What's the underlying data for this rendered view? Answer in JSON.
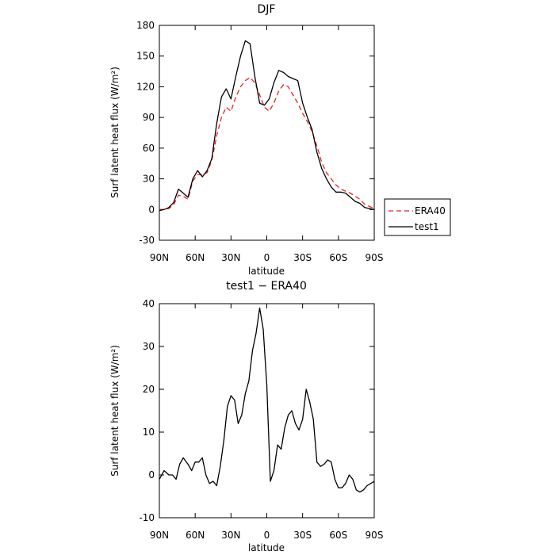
{
  "chart_data": [
    {
      "type": "line",
      "title": "DJF",
      "xlabel": "latitude",
      "ylabel": "Surf latent heat flux (W/m²)",
      "xlim": [
        90,
        -90
      ],
      "ylim": [
        -30,
        180
      ],
      "xticks": [
        90,
        60,
        30,
        0,
        -30,
        -60,
        -90
      ],
      "xtick_labels": [
        "90N",
        "60N",
        "30N",
        "0",
        "30S",
        "60S",
        "90S"
      ],
      "yticks": [
        -30,
        0,
        30,
        60,
        90,
        120,
        150,
        180
      ],
      "ytick_labels": [
        "-30",
        "0",
        "30",
        "60",
        "90",
        "120",
        "150",
        "180"
      ],
      "legend_position": "right",
      "series": [
        {
          "name": "ERA40",
          "color": "#e8201e",
          "dash": "dashed",
          "x": [
            90,
            86,
            82,
            78,
            74,
            70,
            66,
            62,
            58,
            54,
            50,
            46,
            42,
            38,
            34,
            30,
            26,
            22,
            18,
            14,
            10,
            6,
            2,
            -2,
            -6,
            -10,
            -14,
            -18,
            -22,
            -26,
            -30,
            -34,
            -38,
            -42,
            -46,
            -50,
            -54,
            -58,
            -62,
            -66,
            -70,
            -74,
            -78,
            -82,
            -86,
            -90
          ],
          "y": [
            0,
            0,
            1,
            5,
            14,
            13,
            10,
            28,
            34,
            34,
            36,
            48,
            72,
            90,
            100,
            96,
            110,
            120,
            126,
            129,
            124,
            112,
            100,
            96,
            104,
            116,
            122,
            120,
            112,
            104,
            94,
            86,
            76,
            62,
            46,
            36,
            30,
            24,
            20,
            18,
            16,
            13,
            10,
            5,
            3,
            1
          ]
        },
        {
          "name": "test1",
          "color": "#000000",
          "dash": "solid",
          "x": [
            90,
            86,
            82,
            78,
            74,
            70,
            66,
            62,
            58,
            54,
            50,
            46,
            42,
            38,
            34,
            30,
            26,
            22,
            18,
            14,
            10,
            6,
            2,
            -2,
            -6,
            -10,
            -14,
            -18,
            -22,
            -26,
            -30,
            -34,
            -38,
            -42,
            -46,
            -50,
            -54,
            -58,
            -62,
            -66,
            -70,
            -74,
            -78,
            -82,
            -86,
            -90
          ],
          "y": [
            -1,
            0,
            2,
            7,
            20,
            16,
            12,
            30,
            38,
            32,
            38,
            50,
            84,
            110,
            118,
            108,
            130,
            150,
            165,
            162,
            130,
            104,
            102,
            108,
            124,
            136,
            134,
            130,
            128,
            126,
            104,
            90,
            78,
            56,
            40,
            30,
            22,
            17,
            17,
            16,
            12,
            8,
            6,
            2,
            1,
            0
          ]
        }
      ]
    },
    {
      "type": "line",
      "title": "test1 − ERA40",
      "xlabel": "latitude",
      "ylabel": "Surf latent heat flux (W/m²)",
      "xlim": [
        90,
        -90
      ],
      "ylim": [
        -10,
        40
      ],
      "xticks": [
        90,
        60,
        30,
        0,
        -30,
        -60,
        -90
      ],
      "xtick_labels": [
        "90N",
        "60N",
        "30N",
        "0",
        "30S",
        "60S",
        "90S"
      ],
      "yticks": [
        -10,
        0,
        10,
        20,
        30,
        40
      ],
      "ytick_labels": [
        "-10",
        "0",
        "10",
        "20",
        "30",
        "40"
      ],
      "series": [
        {
          "color": "#000000",
          "dash": "solid",
          "x": [
            90,
            86,
            82,
            79,
            76,
            73,
            70,
            66,
            63,
            60,
            57,
            54,
            51,
            48,
            45,
            42,
            39,
            36,
            33,
            30,
            27,
            24,
            21,
            18,
            15,
            12,
            9,
            6,
            3,
            0,
            -3,
            -6,
            -9,
            -12,
            -15,
            -18,
            -21,
            -24,
            -27,
            -30,
            -33,
            -36,
            -39,
            -42,
            -45,
            -48,
            -51,
            -54,
            -57,
            -60,
            -63,
            -66,
            -69,
            -72,
            -75,
            -78,
            -81,
            -84,
            -87,
            -90
          ],
          "y": [
            -1,
            1,
            0,
            0,
            -1,
            2.5,
            4,
            2.5,
            1,
            3,
            3,
            4,
            0,
            -2,
            -1.5,
            -2.5,
            2,
            8,
            16,
            18.5,
            17.5,
            12,
            14,
            19,
            22,
            29,
            33,
            39,
            34,
            21,
            -1.5,
            1,
            7,
            6,
            11,
            14,
            15,
            12,
            10.5,
            13,
            20,
            17,
            13,
            3,
            2,
            2.5,
            3.5,
            3,
            -1,
            -3,
            -3,
            -2,
            0,
            -1,
            -3.5,
            -4,
            -3.5,
            -2.5,
            -2,
            -1.5
          ]
        }
      ]
    }
  ]
}
